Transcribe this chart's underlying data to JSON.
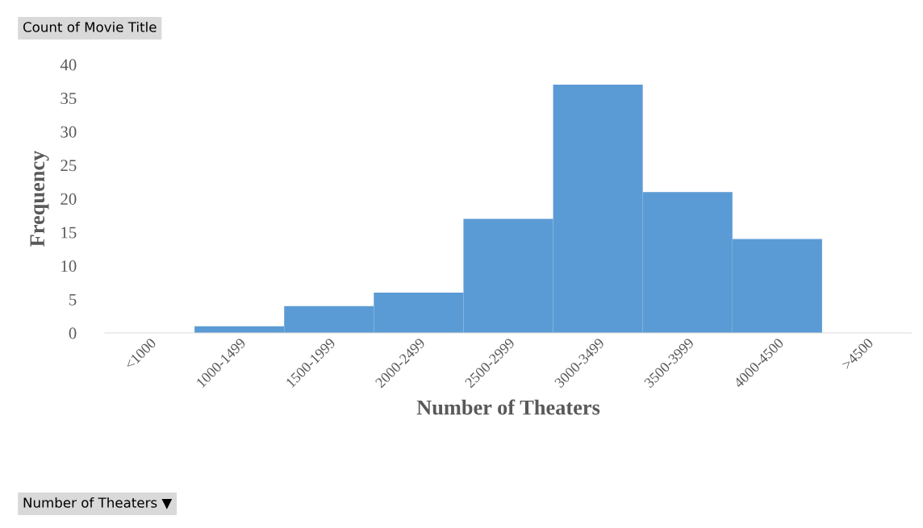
{
  "chart_data": {
    "type": "bar",
    "categories": [
      "<1000",
      "1000-1499",
      "1500-1999",
      "2000-2499",
      "2500-2999",
      "3000-3499",
      "3500-3999",
      "4000-4500",
      ">4500"
    ],
    "values": [
      0,
      1,
      4,
      6,
      17,
      37,
      21,
      14,
      0
    ],
    "color": "#5b9bd5",
    "xlabel": "Number of Theaters",
    "ylabel": "Frequency",
    "ylim": [
      0,
      40
    ],
    "yticks": [
      0,
      5,
      10,
      15,
      20,
      25,
      30,
      35,
      40
    ],
    "grid": false,
    "legend": false,
    "annotations": [
      "Count of Movie Title",
      "Number of Theaters ▼"
    ]
  }
}
